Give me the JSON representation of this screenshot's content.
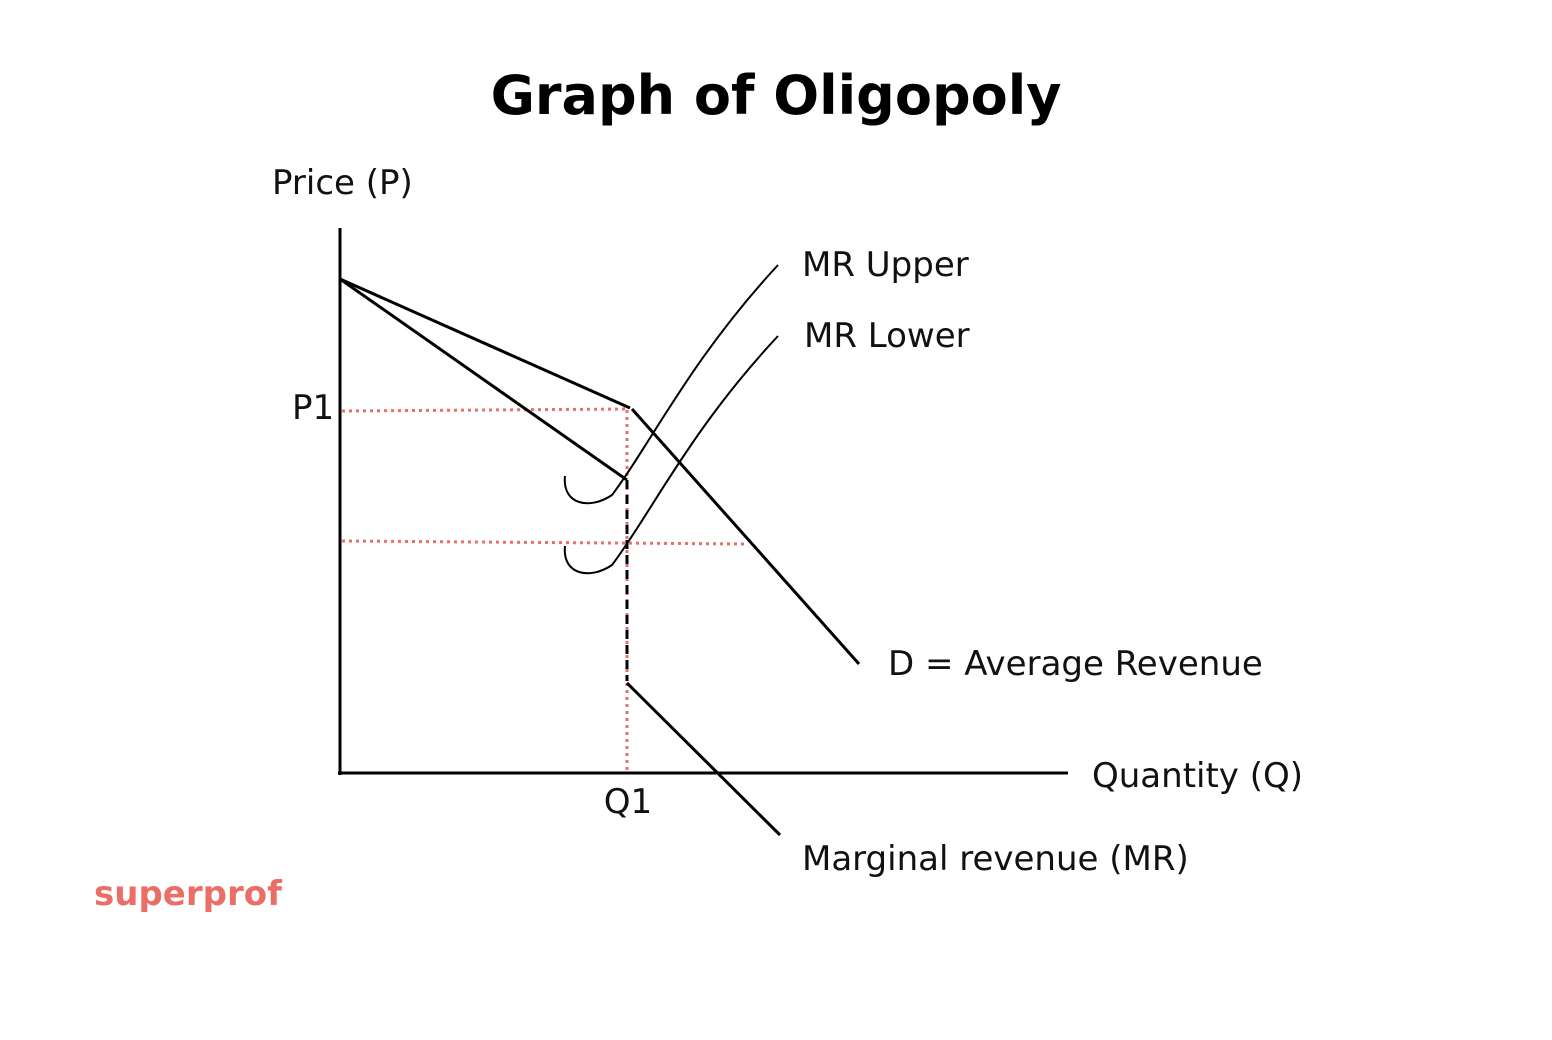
{
  "title": "Graph of Oligopoly",
  "axes": {
    "y_label": "Price (P)",
    "x_label": "Quantity (Q)",
    "p1_label": "P1",
    "q1_label": "Q1"
  },
  "curves": {
    "mr_upper_label": "MR Upper",
    "mr_lower_label": "MR Lower",
    "demand_label": "D = Average Revenue",
    "marginal_revenue_label": "Marginal revenue (MR)"
  },
  "colors": {
    "line": "#000000",
    "guide": "#e8706a",
    "brand": "#ea6d66"
  },
  "brand": {
    "logo_text": "superprof"
  }
}
